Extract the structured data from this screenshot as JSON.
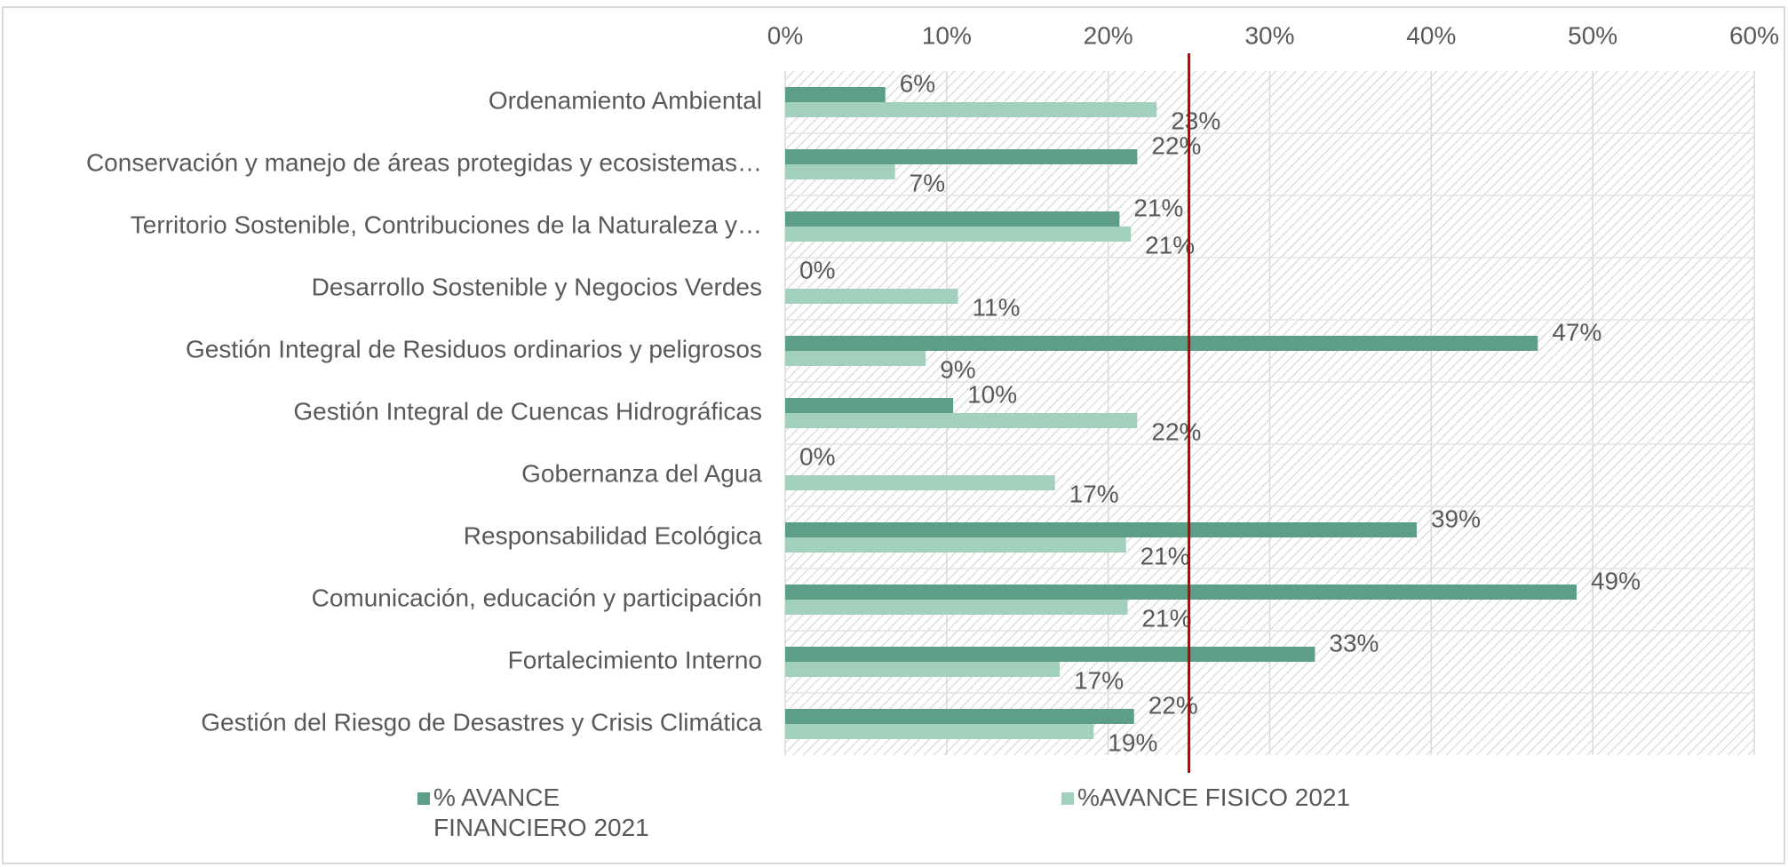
{
  "chart_data": {
    "type": "bar",
    "orientation": "horizontal",
    "categories": [
      "Ordenamiento Ambiental",
      "Conservación y manejo de áreas protegidas y ecosistemas…",
      "Territorio Sostenible, Contribuciones de la Naturaleza y…",
      "Desarrollo Sostenible y Negocios Verdes",
      "Gestión Integral de Residuos ordinarios y peligrosos",
      "Gestión Integral de Cuencas Hidrográficas",
      "Gobernanza del Agua",
      "Responsabilidad Ecológica",
      "Comunicación, educación y participación",
      "Fortalecimiento Interno",
      "Gestión del Riesgo de Desastres y Crisis Climática"
    ],
    "series": [
      {
        "name": "% AVANCE FINANCIERO 2021",
        "color": "#5c9e86",
        "values": [
          6.2,
          21.8,
          20.7,
          0,
          46.6,
          10.4,
          0,
          39.1,
          49.0,
          32.8,
          21.6
        ],
        "value_labels": [
          "6%",
          "22%",
          "21%",
          "0%",
          "47%",
          "10%",
          "0%",
          "39%",
          "49%",
          "33%",
          "22%"
        ]
      },
      {
        "name": "%AVANCE FISICO 2021",
        "color": "#a3cfbd",
        "values": [
          23.0,
          6.8,
          21.4,
          10.7,
          8.7,
          21.8,
          16.7,
          21.1,
          21.2,
          17.0,
          19.1
        ],
        "value_labels": [
          "23%",
          "7%",
          "21%",
          "11%",
          "9%",
          "22%",
          "17%",
          "21%",
          "21%",
          "17%",
          "19%"
        ]
      }
    ],
    "xlim": [
      0,
      60
    ],
    "xticks": [
      {
        "value": 0,
        "label": "0%"
      },
      {
        "value": 10,
        "label": "10%"
      },
      {
        "value": 20,
        "label": "20%"
      },
      {
        "value": 30,
        "label": "30%"
      },
      {
        "value": 40,
        "label": "40%"
      },
      {
        "value": 50,
        "label": "50%"
      },
      {
        "value": 60,
        "label": "60%"
      }
    ],
    "grid": true,
    "reference_line": {
      "value": 25,
      "color": "#c00000"
    },
    "legend": "bottom"
  }
}
